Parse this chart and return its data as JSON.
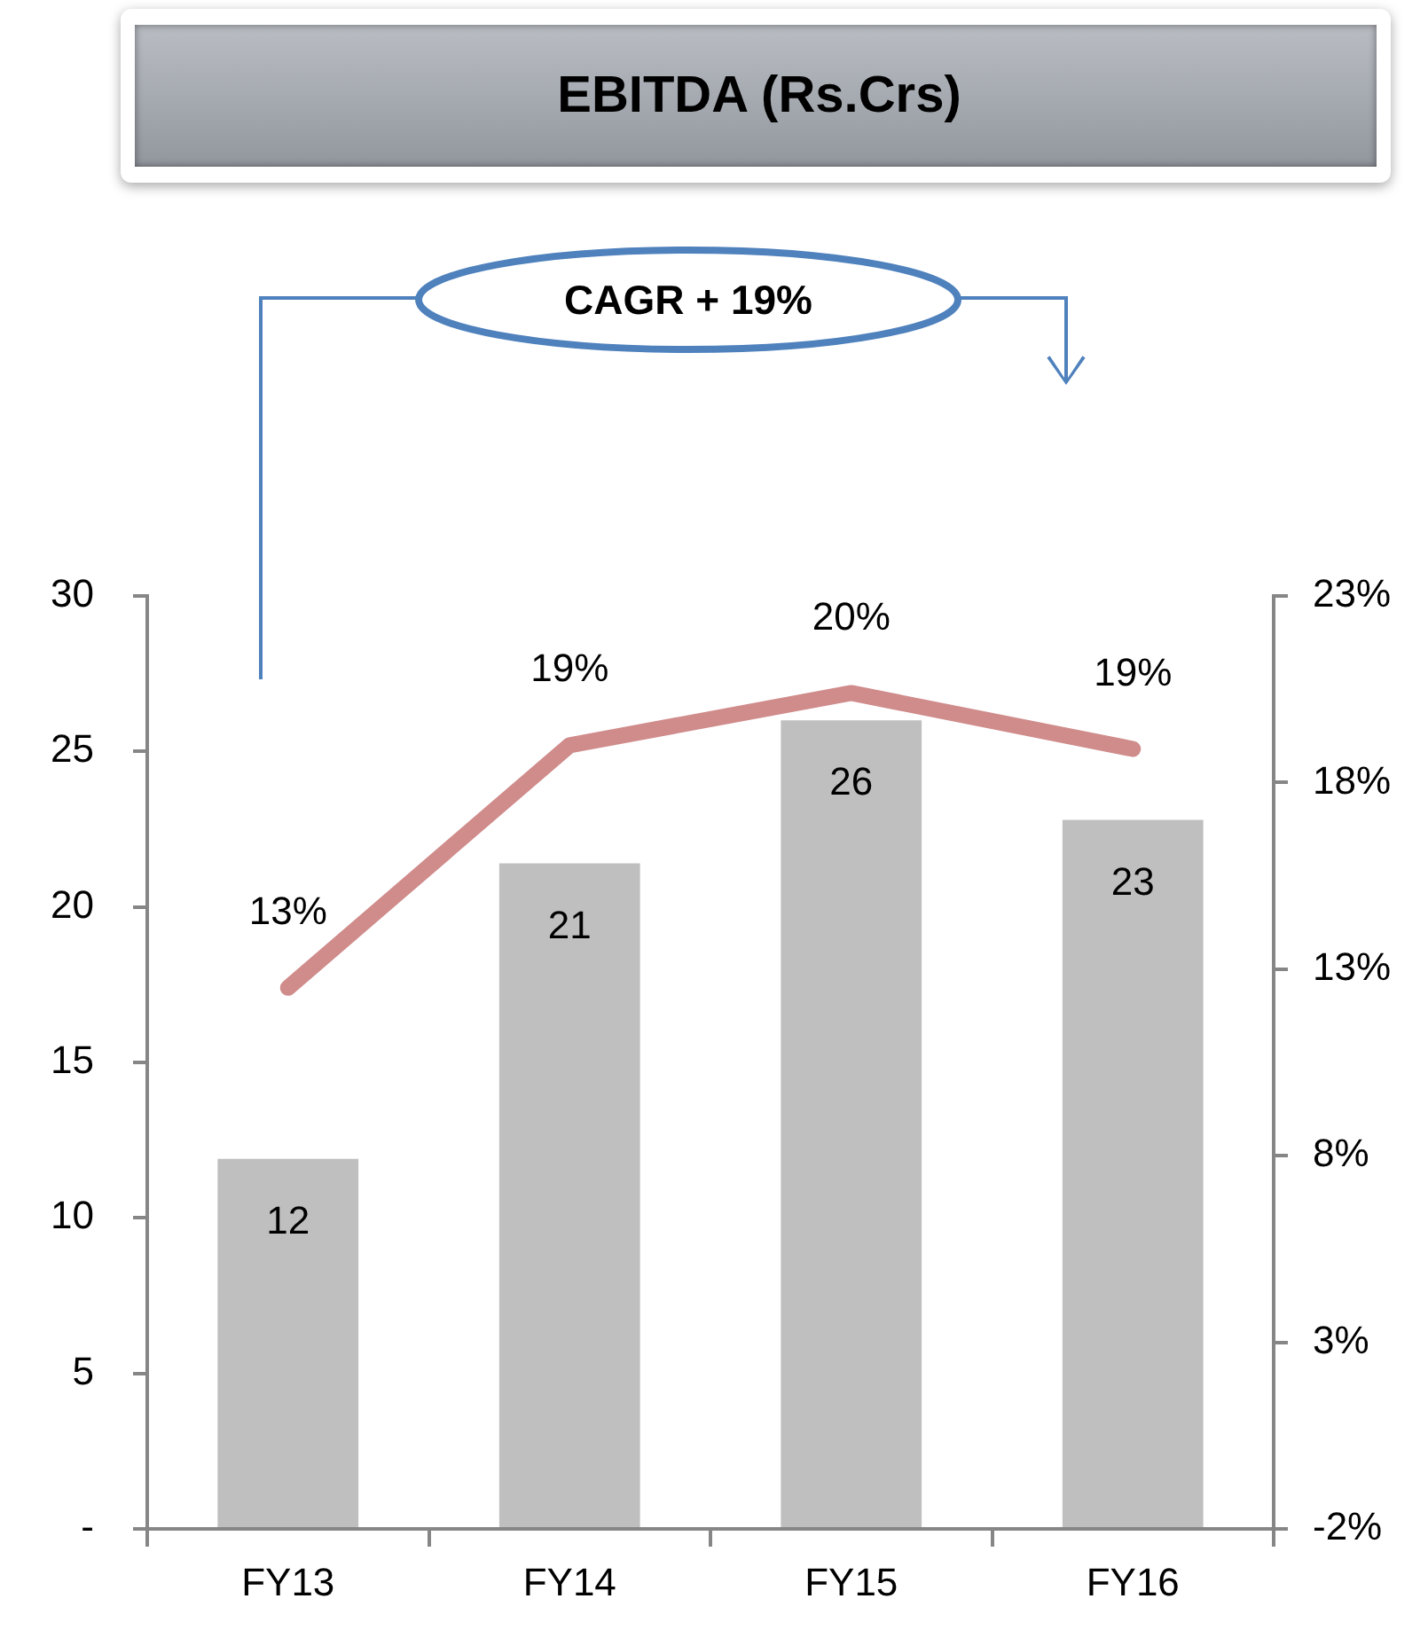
{
  "chart_data": {
    "type": "bar",
    "title": "EBITDA (Rs.Crs)",
    "annotations": [
      "CAGR + 19%"
    ],
    "categories": [
      "FY13",
      "FY14",
      "FY15",
      "FY16"
    ],
    "series": [
      {
        "color": "#bfbfbf",
        "values": [
          11.9,
          21.4,
          26,
          22.8
        ],
        "value_labels": [
          "12",
          "21",
          "26",
          "23"
        ]
      },
      {
        "type": "line",
        "axis": "y2",
        "color": "#d08b8b",
        "values": [
          12.5,
          19,
          20.4,
          18.9
        ],
        "value_labels": [
          "13%",
          "19%",
          "20%",
          "19%"
        ]
      }
    ],
    "ylim": [
      0,
      30
    ],
    "yticks": [
      {
        "value": 0,
        "label": "-"
      },
      5,
      10,
      15,
      20,
      25,
      30
    ],
    "y2lim": [
      -2,
      23
    ],
    "y2ticks": [
      {
        "value": -2,
        "label": "-2%"
      },
      {
        "value": 3,
        "label": "3%"
      },
      {
        "value": 8,
        "label": "8%"
      },
      {
        "value": 13,
        "label": "13%"
      },
      {
        "value": 18,
        "label": "18%"
      },
      {
        "value": 23,
        "label": "23%"
      }
    ],
    "marker": "none",
    "line_style": "solid",
    "grid": false,
    "legend": false
  }
}
